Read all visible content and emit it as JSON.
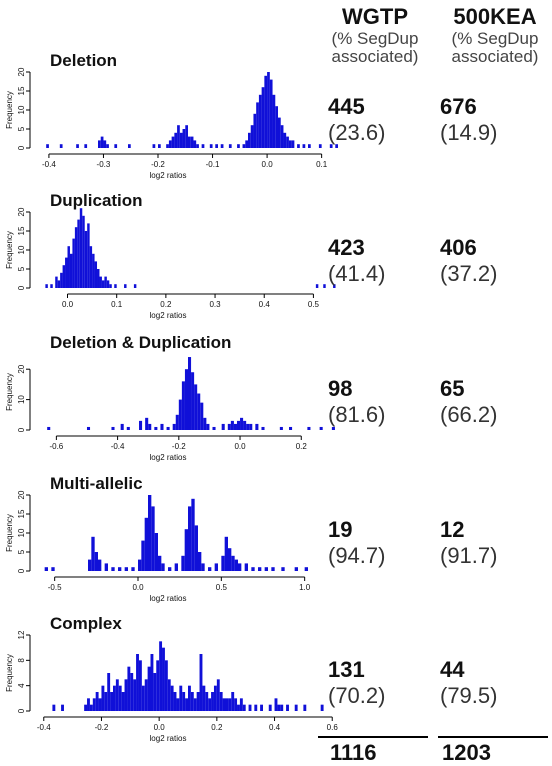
{
  "headers": [
    {
      "name": "WGTP",
      "note": "(% SegDup associated)"
    },
    {
      "name": "500KEA",
      "note": "(% SegDup associated)"
    }
  ],
  "chart_data": [
    {
      "type": "bar",
      "title": "Deletion",
      "xlabel": "log2 ratios",
      "ylabel": "Frequency",
      "xlim": [
        -0.42,
        0.13
      ],
      "ylim": [
        0,
        20
      ],
      "xticks": [
        -0.4,
        -0.3,
        -0.2,
        -0.1,
        0.0,
        0.1
      ],
      "yticks": [
        0,
        5,
        10,
        15,
        20
      ],
      "bin_width": 0.005,
      "bins": [
        [
          -0.405,
          1
        ],
        [
          -0.38,
          1
        ],
        [
          -0.35,
          1
        ],
        [
          -0.335,
          1
        ],
        [
          -0.31,
          2
        ],
        [
          -0.305,
          3
        ],
        [
          -0.3,
          2
        ],
        [
          -0.295,
          1
        ],
        [
          -0.28,
          1
        ],
        [
          -0.255,
          1
        ],
        [
          -0.21,
          1
        ],
        [
          -0.2,
          1
        ],
        [
          -0.185,
          1
        ],
        [
          -0.18,
          2
        ],
        [
          -0.175,
          3
        ],
        [
          -0.17,
          4
        ],
        [
          -0.165,
          6
        ],
        [
          -0.16,
          4
        ],
        [
          -0.155,
          5
        ],
        [
          -0.15,
          6
        ],
        [
          -0.145,
          3
        ],
        [
          -0.14,
          3
        ],
        [
          -0.135,
          2
        ],
        [
          -0.13,
          1
        ],
        [
          -0.12,
          1
        ],
        [
          -0.105,
          1
        ],
        [
          -0.095,
          1
        ],
        [
          -0.085,
          1
        ],
        [
          -0.07,
          1
        ],
        [
          -0.055,
          1
        ],
        [
          -0.045,
          1
        ],
        [
          -0.04,
          2
        ],
        [
          -0.035,
          4
        ],
        [
          -0.03,
          6
        ],
        [
          -0.025,
          9
        ],
        [
          -0.02,
          12
        ],
        [
          -0.015,
          14
        ],
        [
          -0.01,
          16
        ],
        [
          -0.005,
          19
        ],
        [
          0.0,
          20
        ],
        [
          0.005,
          18
        ],
        [
          0.01,
          14
        ],
        [
          0.015,
          11
        ],
        [
          0.02,
          8
        ],
        [
          0.025,
          6
        ],
        [
          0.03,
          4
        ],
        [
          0.035,
          3
        ],
        [
          0.04,
          2
        ],
        [
          0.045,
          2
        ],
        [
          0.055,
          1
        ],
        [
          0.065,
          1
        ],
        [
          0.075,
          1
        ],
        [
          0.095,
          1
        ],
        [
          0.115,
          1
        ],
        [
          0.125,
          1
        ]
      ],
      "counts": {
        "WGTP": 445,
        "WGTP_pct": "(23.6)",
        "500KEA": 676,
        "500KEA_pct": "(14.9)"
      }
    },
    {
      "type": "bar",
      "title": "Duplication",
      "xlabel": "log2 ratios",
      "ylabel": "Frequency",
      "xlim": [
        -0.06,
        0.55
      ],
      "ylim": [
        0,
        20
      ],
      "xticks": [
        0.0,
        0.1,
        0.2,
        0.3,
        0.4,
        0.5
      ],
      "yticks": [
        0,
        5,
        10,
        15,
        20
      ],
      "bin_width": 0.005,
      "bins": [
        [
          -0.045,
          1
        ],
        [
          -0.035,
          1
        ],
        [
          -0.025,
          3
        ],
        [
          -0.02,
          2
        ],
        [
          -0.015,
          4
        ],
        [
          -0.01,
          6
        ],
        [
          -0.005,
          8
        ],
        [
          0.0,
          11
        ],
        [
          0.005,
          9
        ],
        [
          0.01,
          13
        ],
        [
          0.015,
          16
        ],
        [
          0.02,
          18
        ],
        [
          0.025,
          21
        ],
        [
          0.03,
          19
        ],
        [
          0.035,
          15
        ],
        [
          0.04,
          17
        ],
        [
          0.045,
          11
        ],
        [
          0.05,
          9
        ],
        [
          0.055,
          7
        ],
        [
          0.06,
          5
        ],
        [
          0.065,
          3
        ],
        [
          0.07,
          2
        ],
        [
          0.075,
          3
        ],
        [
          0.08,
          2
        ],
        [
          0.085,
          1
        ],
        [
          0.095,
          1
        ],
        [
          0.115,
          1
        ],
        [
          0.135,
          1
        ],
        [
          0.505,
          1
        ],
        [
          0.52,
          1
        ],
        [
          0.54,
          1
        ]
      ],
      "counts": {
        "WGTP": 423,
        "WGTP_pct": "(41.4)",
        "500KEA": 406,
        "500KEA_pct": "(37.2)"
      }
    },
    {
      "type": "bar",
      "title": "Deletion & Duplication",
      "xlabel": "log2 ratios",
      "ylabel": "Frequency",
      "xlim": [
        -0.66,
        0.32
      ],
      "ylim": [
        0,
        25
      ],
      "xticks": [
        -0.6,
        -0.4,
        -0.2,
        0.0,
        0.2
      ],
      "yticks": [
        0,
        10,
        20
      ],
      "bin_width": 0.01,
      "bins": [
        [
          -0.63,
          1
        ],
        [
          -0.5,
          1
        ],
        [
          -0.42,
          1
        ],
        [
          -0.39,
          2
        ],
        [
          -0.37,
          1
        ],
        [
          -0.33,
          3
        ],
        [
          -0.31,
          4
        ],
        [
          -0.3,
          2
        ],
        [
          -0.28,
          1
        ],
        [
          -0.26,
          2
        ],
        [
          -0.24,
          1
        ],
        [
          -0.22,
          2
        ],
        [
          -0.21,
          5
        ],
        [
          -0.2,
          10
        ],
        [
          -0.19,
          16
        ],
        [
          -0.18,
          20
        ],
        [
          -0.17,
          24
        ],
        [
          -0.16,
          19
        ],
        [
          -0.15,
          15
        ],
        [
          -0.14,
          12
        ],
        [
          -0.13,
          9
        ],
        [
          -0.12,
          4
        ],
        [
          -0.11,
          2
        ],
        [
          -0.09,
          1
        ],
        [
          -0.06,
          2
        ],
        [
          -0.04,
          2
        ],
        [
          -0.03,
          3
        ],
        [
          -0.02,
          2
        ],
        [
          -0.01,
          3
        ],
        [
          0.0,
          4
        ],
        [
          0.01,
          3
        ],
        [
          0.02,
          2
        ],
        [
          0.03,
          2
        ],
        [
          0.05,
          2
        ],
        [
          0.07,
          1
        ],
        [
          0.13,
          1
        ],
        [
          0.16,
          1
        ],
        [
          0.22,
          1
        ],
        [
          0.26,
          1
        ],
        [
          0.3,
          1
        ]
      ],
      "counts": {
        "WGTP": 98,
        "WGTP_pct": "(81.6)",
        "500KEA": 65,
        "500KEA_pct": "(66.2)"
      }
    },
    {
      "type": "bar",
      "title": "Multi-allelic",
      "xlabel": "log2 ratios",
      "ylabel": "Frequency",
      "xlim": [
        -0.6,
        1.2
      ],
      "ylim": [
        0,
        20
      ],
      "xticks": [
        -0.5,
        0.0,
        0.5,
        1.0
      ],
      "yticks": [
        0,
        5,
        10,
        15,
        20
      ],
      "bin_width": 0.02,
      "bins": [
        [
          -0.56,
          1
        ],
        [
          -0.52,
          1
        ],
        [
          -0.3,
          3
        ],
        [
          -0.28,
          9
        ],
        [
          -0.26,
          5
        ],
        [
          -0.24,
          3
        ],
        [
          -0.2,
          2
        ],
        [
          -0.16,
          1
        ],
        [
          -0.12,
          1
        ],
        [
          -0.08,
          1
        ],
        [
          -0.04,
          1
        ],
        [
          0.0,
          3
        ],
        [
          0.02,
          8
        ],
        [
          0.04,
          14
        ],
        [
          0.06,
          20
        ],
        [
          0.08,
          17
        ],
        [
          0.1,
          10
        ],
        [
          0.12,
          4
        ],
        [
          0.14,
          2
        ],
        [
          0.18,
          1
        ],
        [
          0.22,
          2
        ],
        [
          0.26,
          4
        ],
        [
          0.28,
          11
        ],
        [
          0.3,
          17
        ],
        [
          0.32,
          19
        ],
        [
          0.34,
          12
        ],
        [
          0.36,
          5
        ],
        [
          0.38,
          2
        ],
        [
          0.42,
          1
        ],
        [
          0.46,
          2
        ],
        [
          0.5,
          4
        ],
        [
          0.52,
          9
        ],
        [
          0.54,
          6
        ],
        [
          0.56,
          4
        ],
        [
          0.58,
          3
        ],
        [
          0.6,
          2
        ],
        [
          0.64,
          2
        ],
        [
          0.68,
          1
        ],
        [
          0.72,
          1
        ],
        [
          0.76,
          1
        ],
        [
          0.8,
          1
        ],
        [
          0.86,
          1
        ],
        [
          0.94,
          1
        ],
        [
          1.0,
          1
        ]
      ],
      "counts": {
        "WGTP": 19,
        "WGTP_pct": "(94.7)",
        "500KEA": 12,
        "500KEA_pct": "(91.7)"
      }
    },
    {
      "type": "bar",
      "title": "Complex",
      "xlabel": "log2 ratios",
      "ylabel": "Frequency",
      "xlim": [
        -0.42,
        0.62
      ],
      "ylim": [
        0,
        12
      ],
      "xticks": [
        -0.4,
        -0.2,
        0.0,
        0.2,
        0.4,
        0.6
      ],
      "yticks": [
        0,
        4,
        8,
        12
      ],
      "bin_width": 0.01,
      "bins": [
        [
          -0.37,
          1
        ],
        [
          -0.34,
          1
        ],
        [
          -0.26,
          1
        ],
        [
          -0.25,
          2
        ],
        [
          -0.24,
          1
        ],
        [
          -0.23,
          2
        ],
        [
          -0.22,
          3
        ],
        [
          -0.21,
          2
        ],
        [
          -0.2,
          4
        ],
        [
          -0.19,
          3
        ],
        [
          -0.18,
          6
        ],
        [
          -0.17,
          3
        ],
        [
          -0.16,
          4
        ],
        [
          -0.15,
          5
        ],
        [
          -0.14,
          4
        ],
        [
          -0.13,
          3
        ],
        [
          -0.12,
          5
        ],
        [
          -0.11,
          7
        ],
        [
          -0.1,
          6
        ],
        [
          -0.09,
          5
        ],
        [
          -0.08,
          9
        ],
        [
          -0.07,
          8
        ],
        [
          -0.06,
          4
        ],
        [
          -0.05,
          5
        ],
        [
          -0.04,
          7
        ],
        [
          -0.03,
          9
        ],
        [
          -0.02,
          6
        ],
        [
          -0.01,
          8
        ],
        [
          0.0,
          11
        ],
        [
          0.01,
          10
        ],
        [
          0.02,
          8
        ],
        [
          0.03,
          5
        ],
        [
          0.04,
          4
        ],
        [
          0.05,
          3
        ],
        [
          0.06,
          2
        ],
        [
          0.07,
          4
        ],
        [
          0.08,
          3
        ],
        [
          0.09,
          2
        ],
        [
          0.1,
          4
        ],
        [
          0.11,
          3
        ],
        [
          0.12,
          2
        ],
        [
          0.13,
          3
        ],
        [
          0.14,
          9
        ],
        [
          0.15,
          4
        ],
        [
          0.16,
          3
        ],
        [
          0.17,
          2
        ],
        [
          0.18,
          3
        ],
        [
          0.19,
          4
        ],
        [
          0.2,
          5
        ],
        [
          0.21,
          3
        ],
        [
          0.22,
          2
        ],
        [
          0.23,
          2
        ],
        [
          0.24,
          2
        ],
        [
          0.25,
          3
        ],
        [
          0.26,
          2
        ],
        [
          0.27,
          1
        ],
        [
          0.28,
          2
        ],
        [
          0.29,
          1
        ],
        [
          0.31,
          1
        ],
        [
          0.33,
          1
        ],
        [
          0.35,
          1
        ],
        [
          0.38,
          1
        ],
        [
          0.4,
          2
        ],
        [
          0.41,
          1
        ],
        [
          0.42,
          1
        ],
        [
          0.44,
          1
        ],
        [
          0.47,
          1
        ],
        [
          0.5,
          1
        ],
        [
          0.56,
          1
        ]
      ],
      "counts": {
        "WGTP": 131,
        "WGTP_pct": "(70.2)",
        "500KEA": 44,
        "500KEA_pct": "(79.5)"
      }
    }
  ],
  "totals": {
    "WGTP": 1116,
    "500KEA": 1203
  },
  "colors": {
    "bars": "#1010d8",
    "axis": "#000000"
  }
}
